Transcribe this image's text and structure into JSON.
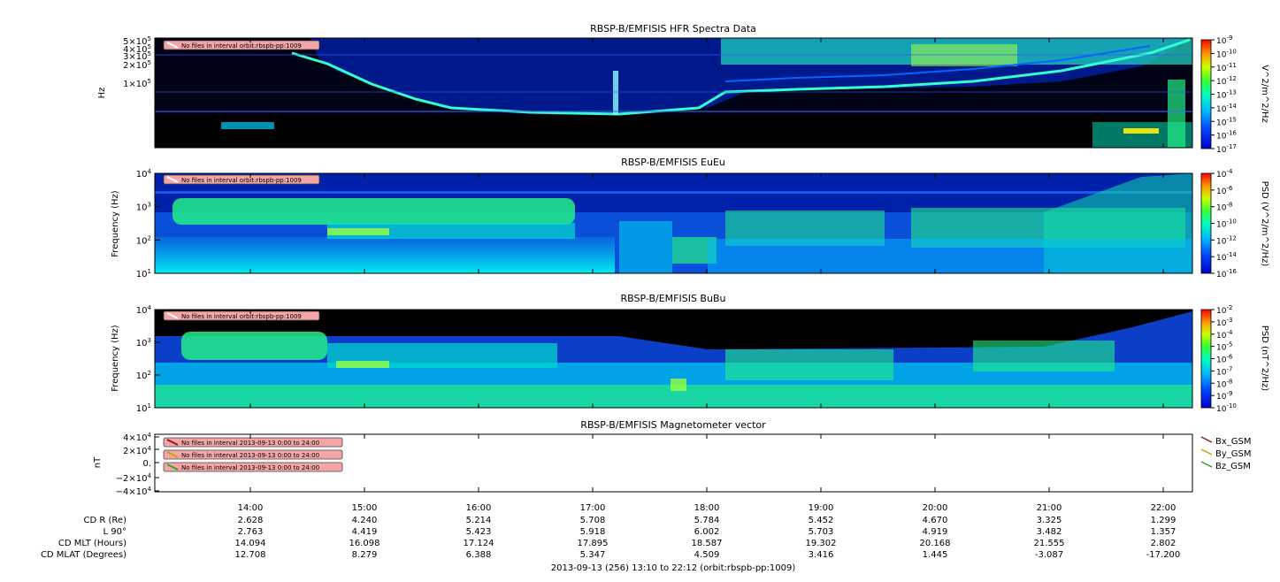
{
  "colors": {
    "spec_background": "#001a8c",
    "spec_black": "#000000",
    "warning_fill": "#f4a6a6",
    "bx": "#8b1a1a",
    "by": "#c8a000",
    "bz": "#22aa22"
  },
  "chart_data": [
    {
      "type": "heatmap",
      "title": "RBSP-B/EMFISIS  HFR Spectra Data",
      "ylabel": "Hz",
      "yscale": "log",
      "ytick_labels": [
        "5×10⁵",
        "4×10⁵",
        "3×10⁵",
        "2×10⁵",
        "1×10⁵"
      ],
      "colorbar": {
        "label": "V^2/m^2/Hz",
        "tick_labels": [
          "-9",
          "-10",
          "-11",
          "-12",
          "-13",
          "-14",
          "-15",
          "-16",
          "-17"
        ],
        "base": "10"
      },
      "warning": "No files in interval orbit:rbspb-pp:1009"
    },
    {
      "type": "heatmap",
      "title": "RBSP-B/EMFISIS  EuEu",
      "ylabel": "Frequency (Hz)",
      "yscale": "log",
      "ytick_exponents": [
        "4",
        "3",
        "2",
        "1"
      ],
      "colorbar": {
        "label": "PSD (V^2/m^2/Hz)",
        "tick_labels": [
          "-4",
          "-6",
          "-8",
          "-10",
          "-12",
          "-14",
          "-16"
        ],
        "base": "10"
      },
      "warning": "No files in interval orbit:rbspb-pp:1009"
    },
    {
      "type": "heatmap",
      "title": "RBSP-B/EMFISIS  BuBu",
      "ylabel": "Frequency (Hz)",
      "yscale": "log",
      "ytick_exponents": [
        "4",
        "3",
        "2",
        "1"
      ],
      "colorbar": {
        "label": "PSD (nT^2/Hz)",
        "tick_labels": [
          "-2",
          "-3",
          "-4",
          "-5",
          "-6",
          "-7",
          "-8",
          "-9",
          "-10"
        ],
        "base": "10"
      },
      "warning": "No files in interval orbit:rbspb-pp:1009"
    },
    {
      "type": "line",
      "title": "RBSP-B/EMFISIS  Magnetometer vector",
      "ylabel": "nT",
      "ylim": [
        -40000,
        40000
      ],
      "ytick_labels": [
        "4×10⁴",
        "2×10⁴",
        "0.",
        "−2×10⁴",
        "−4×10⁴"
      ],
      "series": [
        {
          "name": "Bx_GSM",
          "values": []
        },
        {
          "name": "By_GSM",
          "values": []
        },
        {
          "name": "Bz_GSM",
          "values": []
        }
      ],
      "warnings": [
        "No files in interval 2013-09-13 0:00 to 24:00",
        "No files in interval 2013-09-13 0:00 to 24:00",
        "No files in interval 2013-09-13 0:00 to 24:00"
      ]
    }
  ],
  "x_axis": {
    "ticks": [
      "14:00",
      "15:00",
      "16:00",
      "17:00",
      "18:00",
      "19:00",
      "20:00",
      "21:00",
      "22:00"
    ],
    "footer": "2013-09-13 (256) 13:10 to 22:12 (orbit:rbspb-pp:1009)"
  },
  "ephemeris": [
    {
      "label": "CD R (Re)",
      "values": [
        "2.628",
        "4.240",
        "5.214",
        "5.708",
        "5.784",
        "5.452",
        "4.670",
        "3.325",
        "1.299"
      ]
    },
    {
      "label": "L 90°",
      "values": [
        "2.763",
        "4.419",
        "5.423",
        "5.918",
        "6.002",
        "5.703",
        "4.919",
        "3.482",
        "1.357"
      ]
    },
    {
      "label": "CD MLT (Hours)",
      "values": [
        "14.094",
        "16.098",
        "17.124",
        "17.895",
        "18.587",
        "19.302",
        "20.168",
        "21.555",
        "2.802"
      ]
    },
    {
      "label": "CD MLAT (Degrees)",
      "values": [
        "12.708",
        "8.279",
        "6.388",
        "5.347",
        "4.509",
        "3.416",
        "1.445",
        "-3.087",
        "-17.200"
      ]
    }
  ]
}
